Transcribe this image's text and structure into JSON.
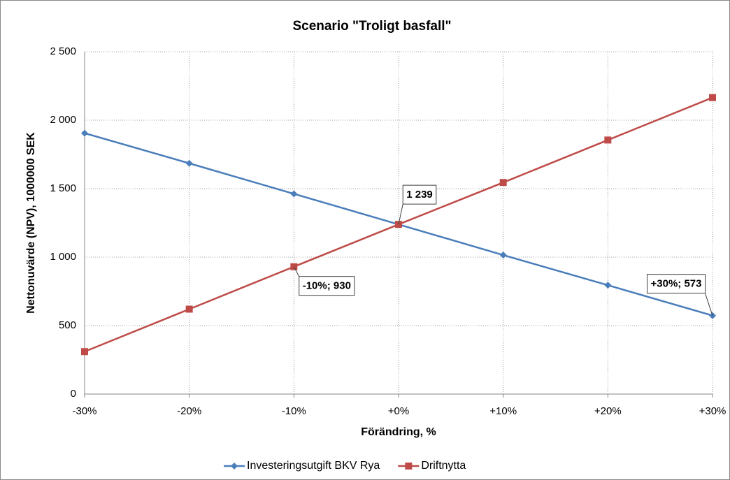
{
  "chart_data": {
    "type": "line",
    "title": "Scenario \"Troligt basfall\"",
    "x_label": "Förändring, %",
    "y_label": "Nettonuvärde (NPV), 1000000 SEK",
    "categories": [
      "-30%",
      "-20%",
      "-10%",
      "+0%",
      "+10%",
      "+20%",
      "+30%"
    ],
    "series": [
      {
        "name": "Investeringsutgift BKV Rya",
        "color": "#4a7ebb",
        "marker": "diamond",
        "values": [
          1905,
          1685,
          1462,
          1239,
          1015,
          795,
          573
        ],
        "value_labels": [
          null,
          null,
          null,
          "1 239",
          null,
          null,
          "+30%; 573"
        ]
      },
      {
        "name": "Driftnytta",
        "color": "#be4b48",
        "marker": "square",
        "values": [
          310,
          620,
          930,
          1239,
          1545,
          1855,
          2165
        ],
        "value_labels": [
          null,
          null,
          "-10%; 930",
          null,
          null,
          null,
          null
        ]
      }
    ],
    "ylim": [
      0,
      2500
    ],
    "yticks": [
      0,
      500,
      {
        "value": 1000,
        "label": "1 000"
      },
      {
        "value": 1500,
        "label": "1 500"
      },
      {
        "value": 2000,
        "label": "2 000"
      },
      {
        "value": 2500,
        "label": "2 500"
      }
    ],
    "grid": true,
    "legend": "bottom"
  }
}
